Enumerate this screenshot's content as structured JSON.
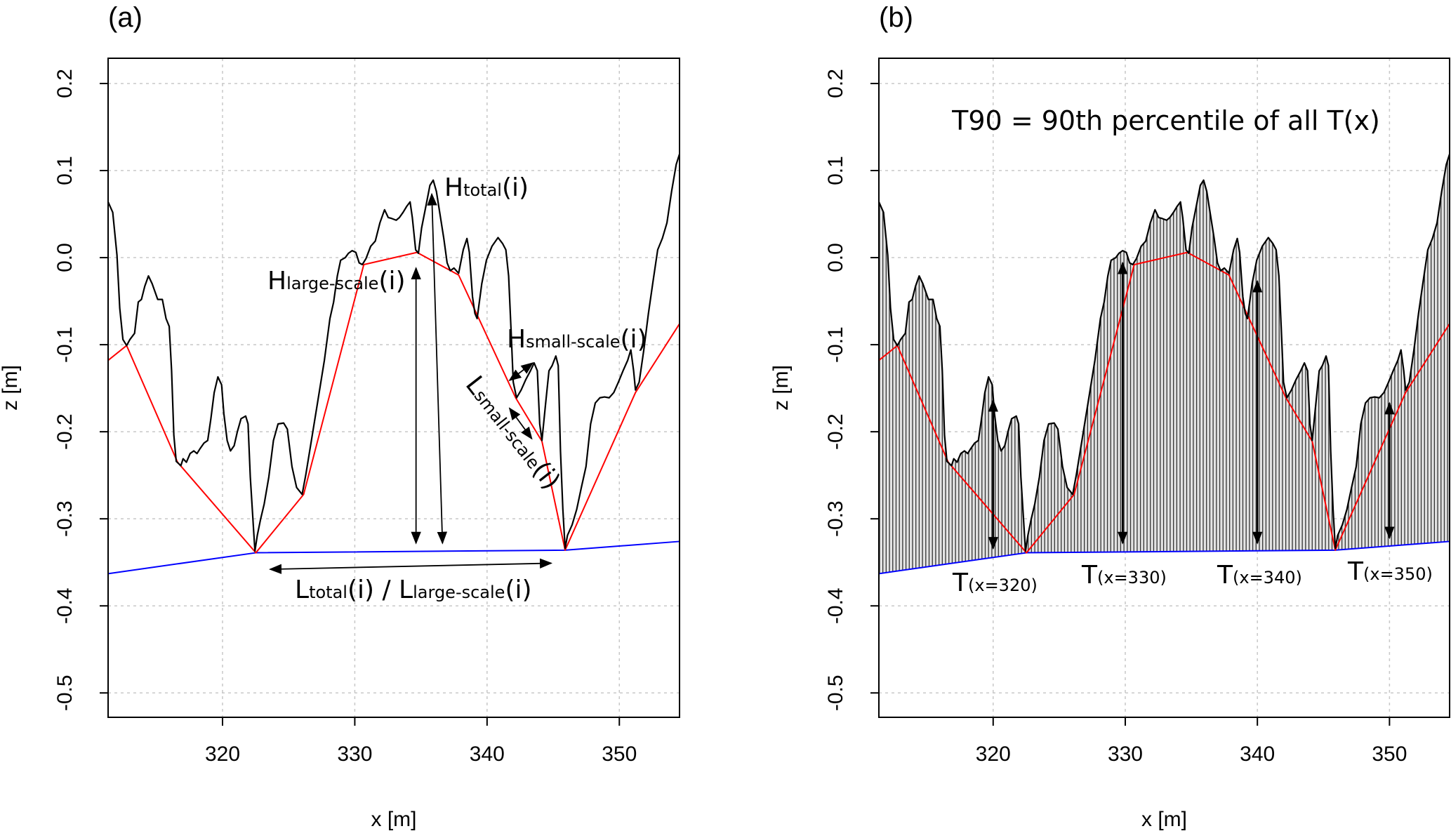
{
  "chart_data": {
    "type": "line",
    "xlabel": "x [m]",
    "ylabel": "z [m]",
    "xlim": [
      311.35,
      354.55
    ],
    "ylim": [
      -0.528,
      0.229
    ],
    "x_ticks": [
      320,
      330,
      340,
      350
    ],
    "y_ticks": [
      0.2,
      0.1,
      0.0,
      -0.1,
      -0.2,
      -0.3,
      -0.4,
      -0.5
    ],
    "y_tick_labels": [
      "0.2",
      "0.1",
      "0.0",
      "-0.1",
      "-0.2",
      "-0.3",
      "-0.4",
      "-0.5"
    ],
    "grid": true,
    "series": {
      "profile": {
        "color": "#000000",
        "points": [
          [
            311.35,
            0.064
          ],
          [
            311.7,
            0.052
          ],
          [
            312.02,
            0.003
          ],
          [
            312.23,
            -0.058
          ],
          [
            312.47,
            -0.094
          ],
          [
            312.75,
            -0.101
          ],
          [
            313.0,
            -0.094
          ],
          [
            313.35,
            -0.087
          ],
          [
            313.63,
            -0.051
          ],
          [
            313.87,
            -0.048
          ],
          [
            314.12,
            -0.033
          ],
          [
            314.4,
            -0.021
          ],
          [
            314.68,
            -0.03
          ],
          [
            315.1,
            -0.048
          ],
          [
            315.45,
            -0.048
          ],
          [
            315.73,
            -0.07
          ],
          [
            315.97,
            -0.079
          ],
          [
            316.15,
            -0.13
          ],
          [
            316.32,
            -0.204
          ],
          [
            316.5,
            -0.234
          ],
          [
            316.85,
            -0.239
          ],
          [
            317.02,
            -0.231
          ],
          [
            317.27,
            -0.235
          ],
          [
            317.55,
            -0.225
          ],
          [
            317.83,
            -0.222
          ],
          [
            318.07,
            -0.225
          ],
          [
            318.32,
            -0.219
          ],
          [
            318.6,
            -0.213
          ],
          [
            318.88,
            -0.21
          ],
          [
            319.12,
            -0.185
          ],
          [
            319.37,
            -0.155
          ],
          [
            319.65,
            -0.137
          ],
          [
            319.93,
            -0.146
          ],
          [
            320.1,
            -0.179
          ],
          [
            320.35,
            -0.21
          ],
          [
            320.6,
            -0.222
          ],
          [
            320.88,
            -0.216
          ],
          [
            321.12,
            -0.2
          ],
          [
            321.4,
            -0.185
          ],
          [
            321.75,
            -0.182
          ],
          [
            321.93,
            -0.191
          ],
          [
            322.1,
            -0.252
          ],
          [
            322.35,
            -0.313
          ],
          [
            322.45,
            -0.337
          ],
          [
            322.63,
            -0.319
          ],
          [
            322.87,
            -0.301
          ],
          [
            323.15,
            -0.283
          ],
          [
            323.5,
            -0.252
          ],
          [
            323.85,
            -0.21
          ],
          [
            324.2,
            -0.191
          ],
          [
            324.62,
            -0.19
          ],
          [
            324.9,
            -0.197
          ],
          [
            325.25,
            -0.24
          ],
          [
            325.6,
            -0.264
          ],
          [
            326.02,
            -0.272
          ],
          [
            326.3,
            -0.249
          ],
          [
            326.72,
            -0.21
          ],
          [
            327.18,
            -0.167
          ],
          [
            327.7,
            -0.118
          ],
          [
            328.12,
            -0.07
          ],
          [
            328.4,
            -0.051
          ],
          [
            328.68,
            -0.021
          ],
          [
            328.93,
            -0.003
          ],
          [
            329.28,
            0.0
          ],
          [
            329.52,
            0.005
          ],
          [
            329.8,
            0.008
          ],
          [
            330.08,
            0.006
          ],
          [
            330.33,
            -0.006
          ],
          [
            330.57,
            -0.008
          ],
          [
            330.85,
            -0.001
          ],
          [
            331.2,
            0.013
          ],
          [
            331.55,
            0.019
          ],
          [
            331.9,
            0.04
          ],
          [
            332.25,
            0.055
          ],
          [
            332.53,
            0.046
          ],
          [
            332.78,
            0.045
          ],
          [
            333.13,
            0.043
          ],
          [
            333.37,
            0.046
          ],
          [
            333.65,
            0.052
          ],
          [
            333.93,
            0.059
          ],
          [
            334.18,
            0.064
          ],
          [
            334.35,
            0.046
          ],
          [
            334.6,
            0.009
          ],
          [
            334.81,
            0.005
          ],
          [
            335.05,
            0.034
          ],
          [
            335.4,
            0.061
          ],
          [
            335.68,
            0.083
          ],
          [
            335.93,
            0.089
          ],
          [
            336.17,
            0.076
          ],
          [
            336.45,
            0.049
          ],
          [
            336.73,
            0.022
          ],
          [
            336.98,
            -0.006
          ],
          [
            337.22,
            -0.015
          ],
          [
            337.5,
            -0.012
          ],
          [
            337.85,
            -0.018
          ],
          [
            338.2,
            0.009
          ],
          [
            338.48,
            0.022
          ],
          [
            338.66,
            0.006
          ],
          [
            338.9,
            -0.045
          ],
          [
            339.08,
            -0.064
          ],
          [
            339.25,
            -0.07
          ],
          [
            339.6,
            -0.03
          ],
          [
            339.95,
            -0.003
          ],
          [
            340.37,
            0.013
          ],
          [
            340.83,
            0.023
          ],
          [
            341.18,
            0.016
          ],
          [
            341.42,
            0.009
          ],
          [
            341.63,
            -0.021
          ],
          [
            341.81,
            -0.082
          ],
          [
            341.98,
            -0.143
          ],
          [
            342.23,
            -0.161
          ],
          [
            342.58,
            -0.152
          ],
          [
            342.93,
            -0.14
          ],
          [
            343.28,
            -0.13
          ],
          [
            343.56,
            -0.121
          ],
          [
            343.8,
            -0.13
          ],
          [
            343.98,
            -0.191
          ],
          [
            344.15,
            -0.21
          ],
          [
            344.43,
            -0.167
          ],
          [
            344.68,
            -0.13
          ],
          [
            344.92,
            -0.124
          ],
          [
            345.2,
            -0.113
          ],
          [
            345.38,
            -0.124
          ],
          [
            345.55,
            -0.222
          ],
          [
            345.73,
            -0.289
          ],
          [
            345.9,
            -0.334
          ],
          [
            346.08,
            -0.319
          ],
          [
            346.43,
            -0.307
          ],
          [
            346.78,
            -0.289
          ],
          [
            347.13,
            -0.264
          ],
          [
            347.48,
            -0.24
          ],
          [
            347.83,
            -0.191
          ],
          [
            348.18,
            -0.167
          ],
          [
            348.53,
            -0.161
          ],
          [
            348.88,
            -0.16
          ],
          [
            349.23,
            -0.161
          ],
          [
            349.58,
            -0.155
          ],
          [
            349.93,
            -0.143
          ],
          [
            350.28,
            -0.13
          ],
          [
            350.63,
            -0.118
          ],
          [
            350.87,
            -0.106
          ],
          [
            351.08,
            -0.13
          ],
          [
            351.22,
            -0.152
          ],
          [
            351.5,
            -0.143
          ],
          [
            351.85,
            -0.106
          ],
          [
            352.2,
            -0.064
          ],
          [
            352.55,
            -0.027
          ],
          [
            352.9,
            0.009
          ],
          [
            353.25,
            0.022
          ],
          [
            353.6,
            0.04
          ],
          [
            353.95,
            0.076
          ],
          [
            354.3,
            0.107
          ],
          [
            354.55,
            0.119
          ]
        ]
      },
      "large_scale": {
        "color": "#ff0000",
        "points": [
          [
            311.35,
            -0.118
          ],
          [
            312.75,
            -0.101
          ],
          [
            316.6,
            -0.235
          ],
          [
            322.52,
            -0.339
          ],
          [
            326.13,
            -0.272
          ],
          [
            330.68,
            -0.008
          ],
          [
            334.7,
            0.006
          ],
          [
            337.85,
            -0.02
          ],
          [
            342.16,
            -0.161
          ],
          [
            344.15,
            -0.211
          ],
          [
            345.9,
            -0.336
          ],
          [
            351.22,
            -0.155
          ],
          [
            354.55,
            -0.076
          ]
        ]
      },
      "base": {
        "color": "#0000ff",
        "points": [
          [
            311.35,
            -0.363
          ],
          [
            322.52,
            -0.339
          ],
          [
            345.9,
            -0.336
          ],
          [
            354.55,
            -0.326
          ]
        ]
      }
    },
    "panels": [
      {
        "label": "(a)",
        "annotations": {
          "h_total": [
            {
              "t": "H"
            },
            {
              "t": "total",
              "sub": true
            },
            {
              "t": "(i)"
            }
          ],
          "h_large": [
            {
              "t": "H"
            },
            {
              "t": "large-scale",
              "sub": true
            },
            {
              "t": "(i)"
            }
          ],
          "h_small": [
            {
              "t": "H"
            },
            {
              "t": "small-scale",
              "sub": true
            },
            {
              "t": "(i)"
            }
          ],
          "l_small": [
            {
              "t": "L"
            },
            {
              "t": "small-scale",
              "sub": true
            },
            {
              "t": "(i)"
            }
          ],
          "l_total": [
            {
              "t": "L"
            },
            {
              "t": "total",
              "sub": true
            },
            {
              "t": "(i) / L"
            },
            {
              "t": "large-scale",
              "sub": true
            },
            {
              "t": "(i)"
            }
          ]
        }
      },
      {
        "label": "(b)",
        "title": "T90 = 90th percentile of all T(x)",
        "fill_color": "#e3e3e3",
        "annotations": {
          "t320": [
            {
              "t": "T"
            },
            {
              "t": "(x=320)",
              "sub": true
            }
          ],
          "t330": [
            {
              "t": "T"
            },
            {
              "t": "(x=330)",
              "sub": true
            }
          ],
          "t340": [
            {
              "t": "T"
            },
            {
              "t": "(x=340)",
              "sub": true
            }
          ],
          "t350": [
            {
              "t": "T"
            },
            {
              "t": "(x=350)",
              "sub": true
            }
          ]
        }
      }
    ]
  }
}
